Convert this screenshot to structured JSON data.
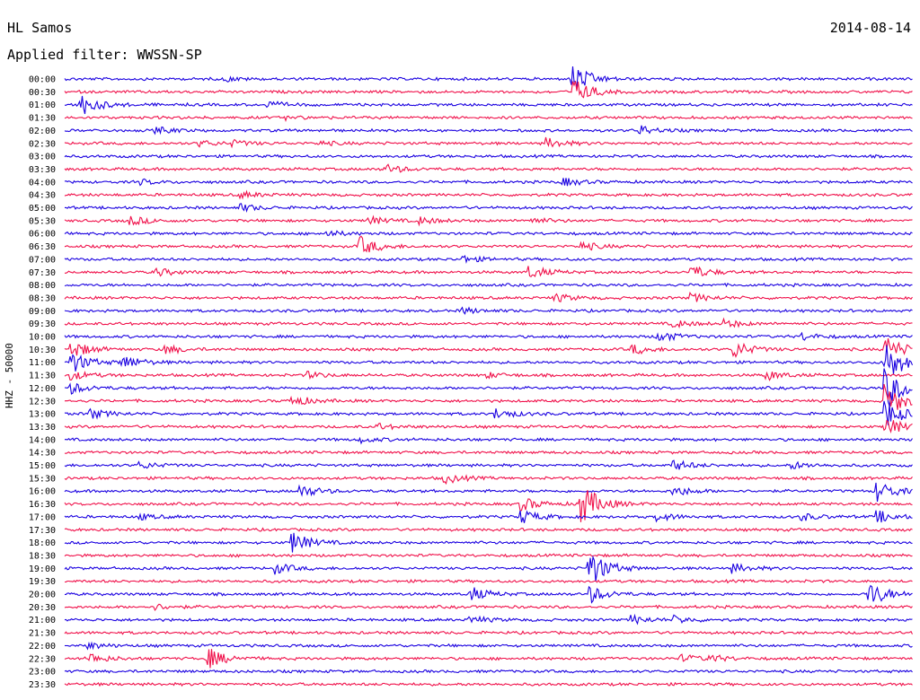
{
  "header": {
    "station": "HL Samos",
    "date": "2014-08-14",
    "filter": "Applied filter: WWSSN-SP"
  },
  "chart_data": {
    "type": "line",
    "title": "HL Samos",
    "ylabel": "HHZ - 50000",
    "subtitle": "Applied filter: WWSSN-SP",
    "colors": [
      "#1a00e0",
      "#f0104a"
    ],
    "rows": [
      "00:00",
      "00:30",
      "01:00",
      "01:30",
      "02:00",
      "02:30",
      "03:00",
      "03:30",
      "04:00",
      "04:30",
      "05:00",
      "05:30",
      "06:00",
      "06:30",
      "07:00",
      "07:30",
      "08:00",
      "08:30",
      "09:00",
      "09:30",
      "10:00",
      "10:30",
      "11:00",
      "11:30",
      "12:00",
      "12:30",
      "13:00",
      "13:30",
      "14:00",
      "14:30",
      "15:00",
      "15:30",
      "16:00",
      "16:30",
      "17:00",
      "17:30",
      "18:00",
      "18:30",
      "19:00",
      "19:30",
      "20:00",
      "20:30",
      "21:00",
      "21:30",
      "22:00",
      "22:30",
      "23:00",
      "23:30"
    ],
    "events": [
      {
        "row": 0,
        "x": 0.19,
        "amp": 0.25
      },
      {
        "row": 0,
        "x": 0.6,
        "amp": 1.8
      },
      {
        "row": 1,
        "x": 0.6,
        "amp": 1.6
      },
      {
        "row": 2,
        "x": 0.02,
        "amp": 1.3
      },
      {
        "row": 2,
        "x": 0.24,
        "amp": 0.35
      },
      {
        "row": 3,
        "x": 0.26,
        "amp": 0.2
      },
      {
        "row": 4,
        "x": 0.11,
        "amp": 0.35
      },
      {
        "row": 4,
        "x": 0.68,
        "amp": 0.5
      },
      {
        "row": 5,
        "x": 0.16,
        "amp": 0.35
      },
      {
        "row": 5,
        "x": 0.2,
        "amp": 0.3
      },
      {
        "row": 5,
        "x": 0.3,
        "amp": 0.25
      },
      {
        "row": 5,
        "x": 0.57,
        "amp": 0.6
      },
      {
        "row": 7,
        "x": 0.38,
        "amp": 0.5
      },
      {
        "row": 8,
        "x": 0.09,
        "amp": 0.3
      },
      {
        "row": 8,
        "x": 0.59,
        "amp": 0.45
      },
      {
        "row": 9,
        "x": 0.21,
        "amp": 0.35
      },
      {
        "row": 10,
        "x": 0.21,
        "amp": 0.4
      },
      {
        "row": 11,
        "x": 0.08,
        "amp": 0.5
      },
      {
        "row": 11,
        "x": 0.36,
        "amp": 0.45
      },
      {
        "row": 11,
        "x": 0.42,
        "amp": 0.4
      },
      {
        "row": 11,
        "x": 0.55,
        "amp": 0.35
      },
      {
        "row": 12,
        "x": 0.31,
        "amp": 0.35
      },
      {
        "row": 13,
        "x": 0.35,
        "amp": 1.1
      },
      {
        "row": 13,
        "x": 0.61,
        "amp": 0.5
      },
      {
        "row": 14,
        "x": 0.47,
        "amp": 0.4
      },
      {
        "row": 15,
        "x": 0.11,
        "amp": 0.45
      },
      {
        "row": 15,
        "x": 0.55,
        "amp": 0.7
      },
      {
        "row": 15,
        "x": 0.74,
        "amp": 0.8
      },
      {
        "row": 17,
        "x": 0.58,
        "amp": 0.45
      },
      {
        "row": 17,
        "x": 0.74,
        "amp": 0.5
      },
      {
        "row": 18,
        "x": 0.47,
        "amp": 0.35
      },
      {
        "row": 19,
        "x": 0.72,
        "amp": 0.4
      },
      {
        "row": 19,
        "x": 0.78,
        "amp": 0.45
      },
      {
        "row": 20,
        "x": 0.7,
        "amp": 0.7
      },
      {
        "row": 20,
        "x": 0.87,
        "amp": 0.4
      },
      {
        "row": 21,
        "x": 0.01,
        "amp": 1.0
      },
      {
        "row": 21,
        "x": 0.12,
        "amp": 0.5
      },
      {
        "row": 21,
        "x": 0.67,
        "amp": 0.6
      },
      {
        "row": 21,
        "x": 0.79,
        "amp": 1.0
      },
      {
        "row": 21,
        "x": 0.97,
        "amp": 1.5
      },
      {
        "row": 22,
        "x": 0.01,
        "amp": 1.2
      },
      {
        "row": 22,
        "x": 0.07,
        "amp": 0.8
      },
      {
        "row": 22,
        "x": 0.97,
        "amp": 2.5
      },
      {
        "row": 23,
        "x": 0.01,
        "amp": 0.5
      },
      {
        "row": 23,
        "x": 0.29,
        "amp": 0.35
      },
      {
        "row": 23,
        "x": 0.5,
        "amp": 0.3
      },
      {
        "row": 23,
        "x": 0.83,
        "amp": 0.5
      },
      {
        "row": 24,
        "x": 0.01,
        "amp": 0.6
      },
      {
        "row": 24,
        "x": 0.97,
        "amp": 2.5
      },
      {
        "row": 25,
        "x": 0.27,
        "amp": 0.6
      },
      {
        "row": 25,
        "x": 0.97,
        "amp": 2.0
      },
      {
        "row": 26,
        "x": 0.03,
        "amp": 0.6
      },
      {
        "row": 26,
        "x": 0.51,
        "amp": 0.6
      },
      {
        "row": 26,
        "x": 0.97,
        "amp": 1.5
      },
      {
        "row": 27,
        "x": 0.37,
        "amp": 0.35
      },
      {
        "row": 27,
        "x": 0.97,
        "amp": 1.0
      },
      {
        "row": 28,
        "x": 0.35,
        "amp": 0.3
      },
      {
        "row": 30,
        "x": 0.09,
        "amp": 0.4
      },
      {
        "row": 30,
        "x": 0.72,
        "amp": 0.6
      },
      {
        "row": 30,
        "x": 0.86,
        "amp": 0.4
      },
      {
        "row": 31,
        "x": 0.45,
        "amp": 0.55
      },
      {
        "row": 32,
        "x": 0.28,
        "amp": 0.7
      },
      {
        "row": 32,
        "x": 0.72,
        "amp": 0.6
      },
      {
        "row": 32,
        "x": 0.96,
        "amp": 1.2
      },
      {
        "row": 33,
        "x": 0.54,
        "amp": 0.8
      },
      {
        "row": 33,
        "x": 0.61,
        "amp": 2.5
      },
      {
        "row": 34,
        "x": 0.09,
        "amp": 0.3
      },
      {
        "row": 34,
        "x": 0.54,
        "amp": 0.8
      },
      {
        "row": 34,
        "x": 0.7,
        "amp": 0.5
      },
      {
        "row": 34,
        "x": 0.87,
        "amp": 0.4
      },
      {
        "row": 34,
        "x": 0.96,
        "amp": 0.7
      },
      {
        "row": 36,
        "x": 0.27,
        "amp": 1.2
      },
      {
        "row": 38,
        "x": 0.25,
        "amp": 0.6
      },
      {
        "row": 38,
        "x": 0.79,
        "amp": 0.5
      },
      {
        "row": 38,
        "x": 0.62,
        "amp": 2.2
      },
      {
        "row": 40,
        "x": 0.48,
        "amp": 0.8
      },
      {
        "row": 40,
        "x": 0.62,
        "amp": 1.0
      },
      {
        "row": 40,
        "x": 0.95,
        "amp": 1.5
      },
      {
        "row": 41,
        "x": 0.11,
        "amp": 0.3
      },
      {
        "row": 42,
        "x": 0.48,
        "amp": 0.4
      },
      {
        "row": 42,
        "x": 0.67,
        "amp": 0.5
      },
      {
        "row": 42,
        "x": 0.72,
        "amp": 0.4
      },
      {
        "row": 44,
        "x": 0.03,
        "amp": 0.35
      },
      {
        "row": 45,
        "x": 0.03,
        "amp": 0.6
      },
      {
        "row": 45,
        "x": 0.17,
        "amp": 1.2
      },
      {
        "row": 45,
        "x": 0.73,
        "amp": 0.4
      },
      {
        "row": 45,
        "x": 0.76,
        "amp": 0.4
      }
    ]
  }
}
